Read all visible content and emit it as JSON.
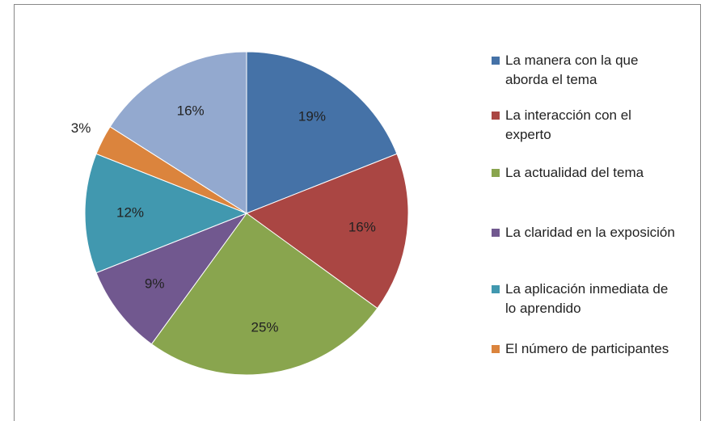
{
  "chart_data": {
    "type": "pie",
    "categories": [
      "La manera con la que aborda el tema",
      "La interacción con el experto",
      "La actualidad del tema",
      "La claridad en la exposición",
      "La aplicación inmediata de lo aprendido",
      "El número de participantes",
      null
    ],
    "values": [
      19,
      16,
      25,
      9,
      12,
      3,
      16
    ],
    "value_labels": [
      "19%",
      "16%",
      "25%",
      "9%",
      "12%",
      "3%",
      "16%"
    ],
    "colors": [
      "#4572a7",
      "#aa4643",
      "#89a54e",
      "#71588f",
      "#4198af",
      "#db843d",
      "#93a9cf"
    ],
    "legend": "right"
  }
}
